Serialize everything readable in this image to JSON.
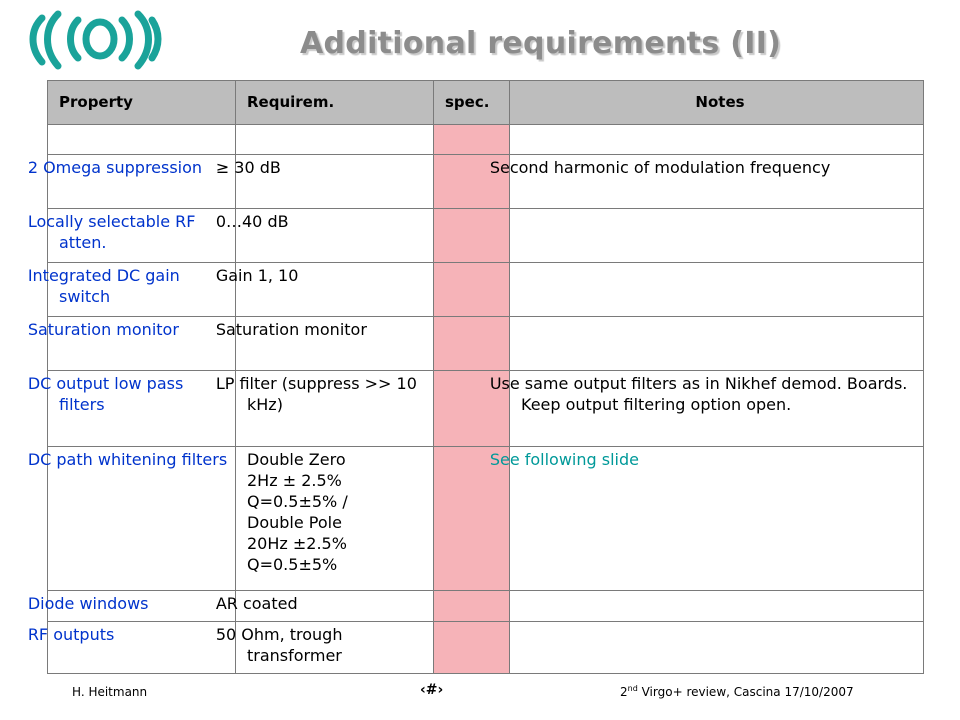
{
  "slide": {
    "title": "Additional requirements (II)",
    "logo_icon": "virgo-logo",
    "accent_color": "#1aa39a"
  },
  "table": {
    "headers": [
      "Property",
      "Requirem.",
      "spec.",
      "Notes"
    ],
    "rows": [
      {
        "property": "",
        "requirement": "",
        "spec": "",
        "notes": ""
      },
      {
        "property": "2 Omega suppression",
        "requirement": "≥ 30 dB",
        "spec": "",
        "notes": "Second harmonic of modulation frequency"
      },
      {
        "property": "Locally selectable RF atten.",
        "requirement": "0…40 dB",
        "spec": "",
        "notes": ""
      },
      {
        "property": "Integrated DC gain switch",
        "requirement": "Gain 1, 10",
        "spec": "",
        "notes": ""
      },
      {
        "property": "Saturation monitor",
        "requirement": "Saturation monitor",
        "spec": "",
        "notes": ""
      },
      {
        "property": "DC output low pass filters",
        "requirement": "LP filter (suppress >> 10 kHz)",
        "spec": "",
        "notes": "Use same output filters as in Nikhef demod. Boards. Keep output filtering option open."
      },
      {
        "property": "DC path whitening filters",
        "requirement": "Double Zero\n2Hz ± 2.5%\nQ=0.5±5% /\nDouble Pole\n20Hz ±2.5%\nQ=0.5±5%",
        "spec": "",
        "notes": "See following slide"
      },
      {
        "property": "Diode windows",
        "requirement": "AR coated",
        "spec": "",
        "notes": ""
      },
      {
        "property": "RF outputs",
        "requirement": "50 Ohm, trough transformer",
        "spec": "",
        "notes": ""
      }
    ]
  },
  "footer": {
    "author": "H. Heitmann",
    "page_number": "‹#›",
    "event_prefix": "2",
    "event_sup": "nd",
    "event_rest": " Virgo+ review, Cascina 17/10/2007"
  }
}
